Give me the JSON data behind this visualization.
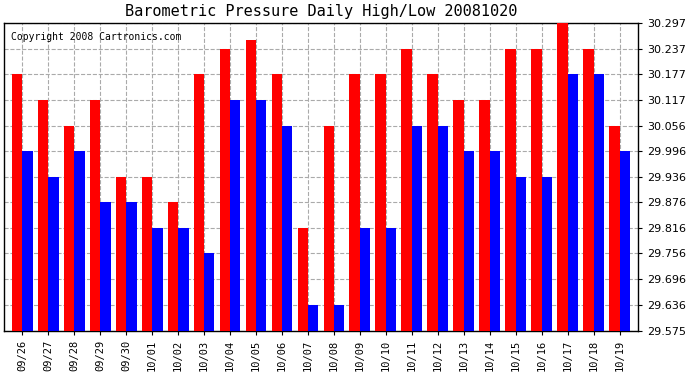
{
  "title": "Barometric Pressure Daily High/Low 20081020",
  "copyright": "Copyright 2008 Cartronics.com",
  "categories": [
    "09/26",
    "09/27",
    "09/28",
    "09/29",
    "09/30",
    "10/01",
    "10/02",
    "10/03",
    "10/04",
    "10/05",
    "10/06",
    "10/07",
    "10/08",
    "10/09",
    "10/10",
    "10/11",
    "10/12",
    "10/13",
    "10/14",
    "10/15",
    "10/16",
    "10/17",
    "10/18",
    "10/19"
  ],
  "highs": [
    30.177,
    30.117,
    30.056,
    30.117,
    29.936,
    29.936,
    29.876,
    30.177,
    30.237,
    30.257,
    30.177,
    29.816,
    30.056,
    30.177,
    30.177,
    30.237,
    30.177,
    30.117,
    30.117,
    30.237,
    30.237,
    30.297,
    30.237,
    30.056
  ],
  "lows": [
    29.996,
    29.936,
    29.996,
    29.876,
    29.876,
    29.816,
    29.816,
    29.756,
    30.117,
    30.117,
    30.056,
    29.636,
    29.636,
    29.816,
    29.816,
    30.056,
    30.056,
    29.996,
    29.996,
    29.936,
    29.936,
    30.177,
    30.177,
    29.996
  ],
  "high_color": "#FF0000",
  "low_color": "#0000FF",
  "bg_color": "#FFFFFF",
  "grid_color": "#AAAAAA",
  "ylim_min": 29.575,
  "ylim_max": 30.297,
  "yticks": [
    29.575,
    29.636,
    29.696,
    29.756,
    29.816,
    29.876,
    29.936,
    29.996,
    30.056,
    30.117,
    30.177,
    30.237,
    30.297
  ]
}
